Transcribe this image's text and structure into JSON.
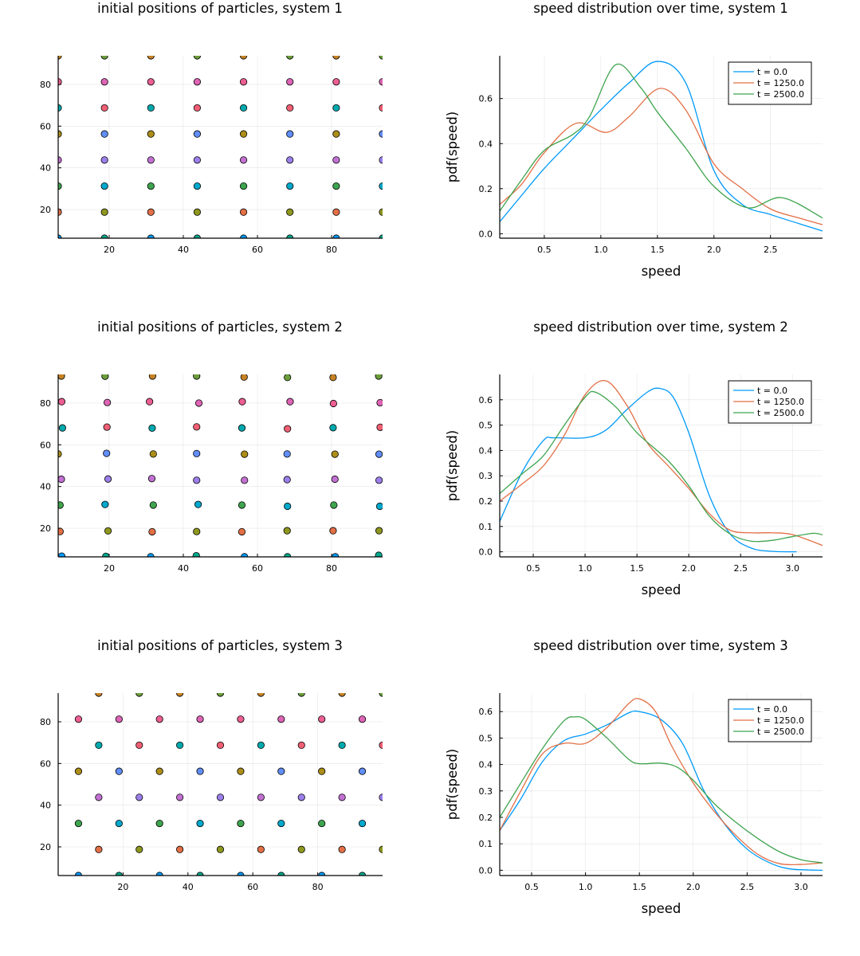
{
  "palette": [
    "#009af9",
    "#e26f46",
    "#3ea44e",
    "#c271d2",
    "#ac8e18",
    "#00a9ad",
    "#ed5e93",
    "#c68225",
    "#00a98d",
    "#8e971e",
    "#00a8cb",
    "#9b7fe9",
    "#618df6",
    "#f05f73",
    "#dd64b5",
    "#6b9d3b"
  ],
  "chart_data": [
    {
      "id": "scatter-system-1",
      "type": "scatter",
      "title": "initial positions of particles, system 1",
      "xlabel": "",
      "ylabel": "",
      "xlim": [
        6.25,
        93.75
      ],
      "ylim": [
        6.25,
        93.75
      ],
      "xticks": [
        20,
        40,
        60,
        80
      ],
      "yticks": [
        20,
        40,
        60,
        80
      ],
      "grid": true,
      "legend": "none",
      "layout": "square-grid",
      "grid_x": [
        6.25,
        18.75,
        31.25,
        43.75,
        56.25,
        68.75,
        81.25,
        93.75
      ],
      "grid_y": [
        6.25,
        18.75,
        31.25,
        43.75,
        56.25,
        68.75,
        81.25,
        93.75
      ],
      "points_note": "one particle per lattice site; color cycles the palette by column then row"
    },
    {
      "id": "speed-system-1",
      "type": "line",
      "title": "speed distribution over time, system 1",
      "xlabel": "speed",
      "ylabel": "pdf(speed)",
      "xlim": [
        0.106,
        2.96
      ],
      "ylim": [
        -0.02,
        0.79
      ],
      "xticks": [
        "0.5",
        "1.0",
        "1.5",
        "2.0",
        "2.5"
      ],
      "yticks": [
        "0.0",
        "0.2",
        "0.4",
        "0.6"
      ],
      "grid": true,
      "legend": "top-right",
      "series": [
        {
          "name": "t = 0.0",
          "color": "#009af9",
          "x": [
            0.106,
            0.25,
            0.5,
            0.75,
            1.0,
            1.25,
            1.5,
            1.75,
            2.0,
            2.25,
            2.5,
            2.75,
            2.96
          ],
          "y": [
            0.053,
            0.14,
            0.29,
            0.42,
            0.55,
            0.67,
            0.765,
            0.67,
            0.28,
            0.13,
            0.085,
            0.045,
            0.012
          ]
        },
        {
          "name": "t = 1250.0",
          "color": "#e26f46",
          "x": [
            0.106,
            0.3,
            0.5,
            0.78,
            1.05,
            1.25,
            1.52,
            1.75,
            2.0,
            2.25,
            2.5,
            2.75,
            2.96
          ],
          "y": [
            0.13,
            0.22,
            0.36,
            0.49,
            0.45,
            0.52,
            0.645,
            0.55,
            0.31,
            0.2,
            0.11,
            0.07,
            0.04
          ]
        },
        {
          "name": "t = 2500.0",
          "color": "#3ea44e",
          "x": [
            0.106,
            0.3,
            0.5,
            0.75,
            0.9,
            1.13,
            1.35,
            1.5,
            1.75,
            2.0,
            2.3,
            2.6,
            2.96
          ],
          "y": [
            0.1,
            0.24,
            0.37,
            0.44,
            0.52,
            0.75,
            0.65,
            0.54,
            0.38,
            0.21,
            0.115,
            0.16,
            0.07
          ]
        }
      ]
    },
    {
      "id": "scatter-system-2",
      "type": "scatter",
      "title": "initial positions of particles, system 2",
      "xlabel": "",
      "ylabel": "",
      "xlim": [
        6.25,
        93.75
      ],
      "ylim": [
        6.25,
        93.75
      ],
      "xticks": [
        20,
        40,
        60,
        80
      ],
      "yticks": [
        20,
        40,
        60,
        80
      ],
      "grid": true,
      "legend": "none",
      "layout": "jittered-grid",
      "points": [
        [
          [
            7.2,
            6.6
          ],
          [
            19.1,
            6.5
          ],
          [
            31.2,
            6.3
          ],
          [
            43.5,
            6.8
          ],
          [
            56.5,
            6.3
          ],
          [
            68.1,
            6.3
          ],
          [
            81.0,
            6.3
          ],
          [
            92.7,
            7.0
          ]
        ],
        [
          [
            6.75,
            18.4
          ],
          [
            19.7,
            18.7
          ],
          [
            31.6,
            18.3
          ],
          [
            43.6,
            18.4
          ],
          [
            55.8,
            18.3
          ],
          [
            68.0,
            18.8
          ],
          [
            80.4,
            18.8
          ],
          [
            92.8,
            18.8
          ]
        ],
        [
          [
            6.75,
            31.1
          ],
          [
            18.9,
            31.4
          ],
          [
            31.9,
            31.1
          ],
          [
            44.0,
            31.4
          ],
          [
            55.8,
            31.1
          ],
          [
            68.1,
            30.5
          ],
          [
            80.6,
            31.1
          ],
          [
            93.0,
            30.5
          ]
        ],
        [
          [
            7.1,
            43.5
          ],
          [
            19.7,
            43.6
          ],
          [
            31.5,
            43.8
          ],
          [
            43.6,
            43.0
          ],
          [
            56.5,
            43.0
          ],
          [
            68.0,
            43.3
          ],
          [
            80.9,
            43.5
          ],
          [
            92.8,
            43.0
          ]
        ],
        [
          [
            6.25,
            55.6
          ],
          [
            19.3,
            55.9
          ],
          [
            31.9,
            55.6
          ],
          [
            43.6,
            55.8
          ],
          [
            56.5,
            55.5
          ],
          [
            68.0,
            55.6
          ],
          [
            80.9,
            55.5
          ],
          [
            92.8,
            55.5
          ]
        ],
        [
          [
            7.4,
            68.1
          ],
          [
            19.4,
            68.5
          ],
          [
            31.6,
            68.0
          ],
          [
            43.6,
            68.6
          ],
          [
            55.8,
            68.1
          ],
          [
            68.1,
            67.7
          ],
          [
            80.4,
            68.2
          ],
          [
            93.1,
            68.4
          ]
        ],
        [
          [
            7.2,
            80.7
          ],
          [
            19.5,
            80.3
          ],
          [
            30.9,
            80.7
          ],
          [
            44.2,
            80.0
          ],
          [
            55.9,
            80.7
          ],
          [
            68.8,
            80.7
          ],
          [
            80.5,
            79.8
          ],
          [
            93.1,
            80.2
          ]
        ],
        [
          [
            7.1,
            93.0
          ],
          [
            18.9,
            92.9
          ],
          [
            31.7,
            93.0
          ],
          [
            43.6,
            93.0
          ],
          [
            56.4,
            92.5
          ],
          [
            68.1,
            92.3
          ],
          [
            80.4,
            92.3
          ],
          [
            92.7,
            93.0
          ]
        ]
      ]
    },
    {
      "id": "speed-system-2",
      "type": "line",
      "title": "speed distribution over time, system 2",
      "xlabel": "speed",
      "ylabel": "pdf(speed)",
      "xlim": [
        0.177,
        3.29
      ],
      "ylim": [
        -0.02,
        0.7
      ],
      "xticks": [
        "0.5",
        "1.0",
        "1.5",
        "2.0",
        "2.5",
        "3.0"
      ],
      "yticks": [
        "0.0",
        "0.1",
        "0.2",
        "0.3",
        "0.4",
        "0.5",
        "0.6"
      ],
      "grid": true,
      "legend": "top-right",
      "series": [
        {
          "name": "t = 0.0",
          "color": "#009af9",
          "x": [
            0.177,
            0.4,
            0.6,
            0.7,
            1.0,
            1.2,
            1.4,
            1.6,
            1.72,
            1.85,
            2.0,
            2.2,
            2.4,
            2.6,
            2.8,
            3.04
          ],
          "y": [
            0.12,
            0.32,
            0.44,
            0.45,
            0.45,
            0.48,
            0.56,
            0.63,
            0.645,
            0.61,
            0.47,
            0.22,
            0.07,
            0.015,
            0.002,
            0.0
          ]
        },
        {
          "name": "t = 1250.0",
          "color": "#e26f46",
          "x": [
            0.177,
            0.4,
            0.6,
            0.8,
            1.0,
            1.2,
            1.4,
            1.6,
            1.8,
            2.0,
            2.2,
            2.4,
            2.6,
            2.8,
            3.0,
            3.29
          ],
          "y": [
            0.2,
            0.27,
            0.34,
            0.46,
            0.62,
            0.675,
            0.58,
            0.43,
            0.34,
            0.25,
            0.15,
            0.085,
            0.075,
            0.075,
            0.068,
            0.025
          ]
        },
        {
          "name": "t = 2500.0",
          "color": "#3ea44e",
          "x": [
            0.177,
            0.4,
            0.6,
            0.8,
            1.0,
            1.1,
            1.3,
            1.5,
            1.8,
            2.0,
            2.2,
            2.4,
            2.6,
            2.8,
            3.0,
            3.2,
            3.29
          ],
          "y": [
            0.23,
            0.31,
            0.38,
            0.5,
            0.61,
            0.63,
            0.57,
            0.47,
            0.36,
            0.26,
            0.14,
            0.07,
            0.042,
            0.045,
            0.06,
            0.073,
            0.067
          ]
        }
      ]
    },
    {
      "id": "scatter-system-3",
      "type": "scatter",
      "title": "initial positions of particles, system 3",
      "xlabel": "",
      "ylabel": "",
      "xlim": [
        0,
        100
      ],
      "ylim": [
        6.25,
        93.75
      ],
      "xticks": [
        20,
        40,
        60,
        80
      ],
      "yticks": [
        20,
        40,
        60,
        80
      ],
      "grid": true,
      "legend": "none",
      "layout": "hexagonal",
      "even_row_x": [
        6.25,
        18.75,
        31.25,
        43.75,
        56.25,
        68.75,
        81.25,
        93.75
      ],
      "odd_row_x": [
        12.5,
        25,
        37.5,
        50,
        62.5,
        75,
        87.5,
        100
      ],
      "rows_y": [
        6.25,
        18.75,
        31.25,
        43.75,
        56.25,
        68.75,
        81.25,
        93.75
      ]
    },
    {
      "id": "speed-system-3",
      "type": "line",
      "title": "speed distribution over time, system 3",
      "xlabel": "speed",
      "ylabel": "pdf(speed)",
      "xlim": [
        0.204,
        3.2
      ],
      "ylim": [
        -0.02,
        0.67
      ],
      "xticks": [
        "0.5",
        "1.0",
        "1.5",
        "2.0",
        "2.5",
        "3.0"
      ],
      "yticks": [
        "0.0",
        "0.1",
        "0.2",
        "0.3",
        "0.4",
        "0.5",
        "0.6"
      ],
      "grid": true,
      "legend": "top-right",
      "series": [
        {
          "name": "t = 0.0",
          "color": "#009af9",
          "x": [
            0.204,
            0.4,
            0.6,
            0.8,
            1.0,
            1.2,
            1.4,
            1.5,
            1.7,
            1.9,
            2.1,
            2.3,
            2.5,
            2.7,
            2.9,
            3.2
          ],
          "y": [
            0.15,
            0.27,
            0.41,
            0.49,
            0.515,
            0.55,
            0.595,
            0.6,
            0.57,
            0.48,
            0.3,
            0.17,
            0.08,
            0.03,
            0.005,
            0.0
          ]
        },
        {
          "name": "t = 1250.0",
          "color": "#e26f46",
          "x": [
            0.204,
            0.4,
            0.6,
            0.8,
            1.0,
            1.2,
            1.4,
            1.5,
            1.65,
            1.8,
            2.0,
            2.2,
            2.4,
            2.6,
            2.8,
            3.0,
            3.2
          ],
          "y": [
            0.15,
            0.3,
            0.44,
            0.48,
            0.48,
            0.54,
            0.63,
            0.648,
            0.6,
            0.47,
            0.33,
            0.22,
            0.13,
            0.06,
            0.025,
            0.022,
            0.028
          ]
        },
        {
          "name": "t = 2500.0",
          "color": "#3ea44e",
          "x": [
            0.204,
            0.4,
            0.6,
            0.8,
            0.9,
            1.0,
            1.2,
            1.4,
            1.5,
            1.7,
            1.85,
            2.0,
            2.2,
            2.4,
            2.6,
            2.8,
            3.0,
            3.2
          ],
          "y": [
            0.2,
            0.33,
            0.46,
            0.565,
            0.58,
            0.57,
            0.5,
            0.42,
            0.403,
            0.405,
            0.39,
            0.34,
            0.25,
            0.18,
            0.12,
            0.07,
            0.04,
            0.028
          ]
        }
      ]
    }
  ]
}
